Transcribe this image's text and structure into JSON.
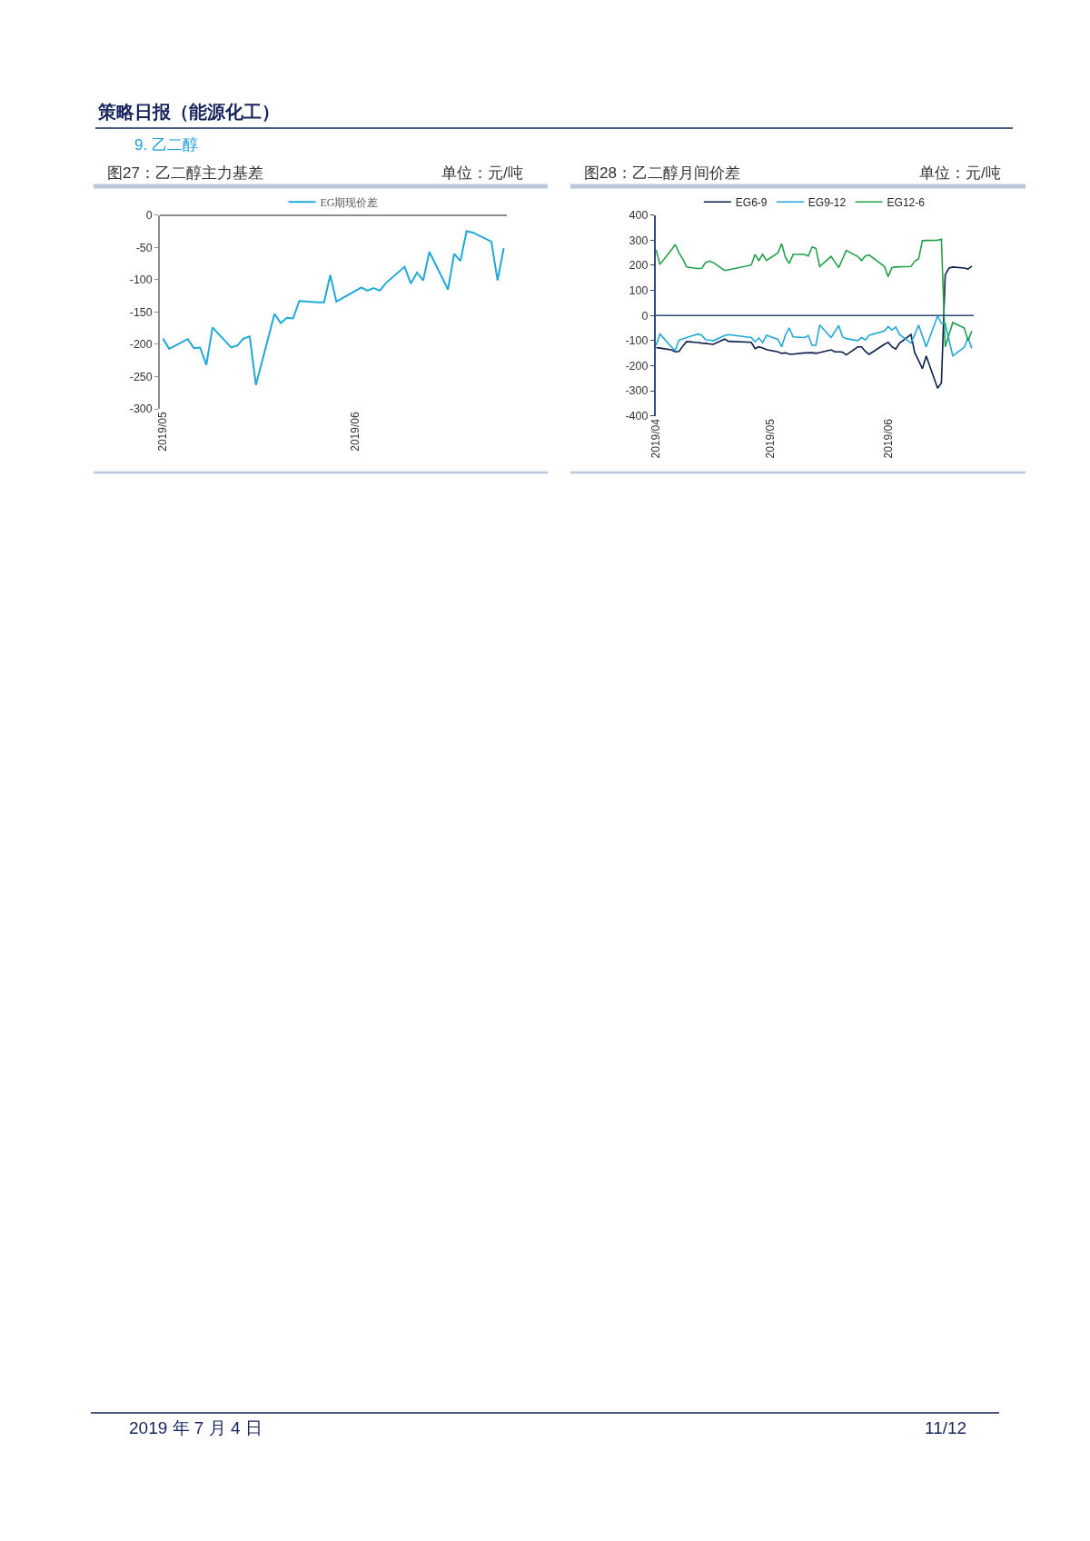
{
  "chart_data": [
    {
      "type": "line",
      "title": "图27：乙二醇主力基差",
      "annotations": [
        "单位：元/吨",
        "策略日报（能源化工）",
        "9. 乙二醇",
        "2019 年 7 月 4 日",
        "11/12"
      ],
      "x": [
        "2019-05-09",
        "2019-05-10",
        "2019-05-13",
        "2019-05-14",
        "2019-05-15",
        "2019-05-16",
        "2019-05-17",
        "2019-05-20",
        "2019-05-21",
        "2019-05-22",
        "2019-05-23",
        "2019-05-24",
        "2019-05-27",
        "2019-05-28",
        "2019-05-29",
        "2019-05-30",
        "2019-05-31",
        "2019-06-03",
        "2019-06-04",
        "2019-06-05",
        "2019-06-06",
        "2019-06-10",
        "2019-06-11",
        "2019-06-12",
        "2019-06-13",
        "2019-06-14",
        "2019-06-17",
        "2019-06-18",
        "2019-06-19",
        "2019-06-20",
        "2019-06-21",
        "2019-06-24",
        "2019-06-25",
        "2019-06-26",
        "2019-06-27",
        "2019-06-28",
        "2019-07-01",
        "2019-07-02",
        "2019-07-03"
      ],
      "series": [
        {
          "name": "EG期现价差",
          "color": "#1fa8d8",
          "values": [
            -191,
            -207,
            -192,
            -206,
            -205,
            -232,
            -174,
            -205,
            -202,
            -191,
            -188,
            -263,
            -153,
            -167,
            -159,
            -160,
            -133,
            -135,
            -135,
            -93,
            -134,
            -112,
            -117,
            -113,
            -117,
            -105,
            -80,
            -106,
            -89,
            -101,
            -57,
            -115,
            -60,
            -71,
            -25,
            -27,
            -41,
            -101,
            -51
          ]
        }
      ],
      "xlim": [
        "2019-05-08T12:00",
        "2019-07-03T12:00"
      ],
      "xticks": [
        {
          "value": "2019-05-09",
          "label": "2019/05"
        },
        {
          "value": "2019-06-09",
          "label": "2019/06"
        }
      ],
      "ylim": [
        -300,
        0
      ],
      "yticks": [
        -300,
        -250,
        -200,
        -150,
        -100,
        -50,
        0
      ],
      "legend": "top"
    },
    {
      "type": "line",
      "title": "图28：乙二醇月间价差",
      "annotations": [
        "单位：元/吨"
      ],
      "x": [
        "2019-04-11",
        "2019-04-12",
        "2019-04-15",
        "2019-04-16",
        "2019-04-17",
        "2019-04-18",
        "2019-04-19",
        "2019-04-22",
        "2019-04-23",
        "2019-04-24",
        "2019-04-25",
        "2019-04-26",
        "2019-04-29",
        "2019-04-30",
        "2019-05-06",
        "2019-05-07",
        "2019-05-08",
        "2019-05-09",
        "2019-05-10",
        "2019-05-13",
        "2019-05-14",
        "2019-05-15",
        "2019-05-16",
        "2019-05-17",
        "2019-05-20",
        "2019-05-21",
        "2019-05-22",
        "2019-05-23",
        "2019-05-24",
        "2019-05-27",
        "2019-05-28",
        "2019-05-29",
        "2019-05-30",
        "2019-05-31",
        "2019-06-03",
        "2019-06-04",
        "2019-06-05",
        "2019-06-06",
        "2019-06-10",
        "2019-06-11",
        "2019-06-12",
        "2019-06-13",
        "2019-06-14",
        "2019-06-17",
        "2019-06-18",
        "2019-06-19",
        "2019-06-20",
        "2019-06-21",
        "2019-06-24",
        "2019-06-25",
        "2019-06-26",
        "2019-06-27",
        "2019-06-28",
        "2019-07-01",
        "2019-07-02",
        "2019-07-03"
      ],
      "series": [
        {
          "name": "EG6-9",
          "color": "#0b1f4b",
          "values": [
            -128,
            -130,
            -137,
            -145,
            -143,
            -122,
            -104,
            -108,
            -110,
            -111,
            -113,
            -115,
            -94,
            -103,
            -107,
            -132,
            -125,
            -130,
            -136,
            -145,
            -151,
            -149,
            -154,
            -154,
            -149,
            -149,
            -148,
            -151,
            -148,
            -137,
            -145,
            -145,
            -146,
            -157,
            -125,
            -125,
            -143,
            -155,
            -115,
            -107,
            -125,
            -134,
            -110,
            -76,
            -149,
            -179,
            -212,
            -161,
            -290,
            -269,
            162,
            189,
            193,
            189,
            185,
            197
          ]
        },
        {
          "name": "EG9-12",
          "color": "#1fa8d8",
          "values": [
            -119,
            -74,
            -125,
            -140,
            -98,
            -93,
            -88,
            -74,
            -79,
            -97,
            -98,
            -101,
            -80,
            -76,
            -88,
            -105,
            -90,
            -108,
            -79,
            -95,
            -125,
            -76,
            -50,
            -85,
            -88,
            -80,
            -119,
            -119,
            -38,
            -88,
            -64,
            -40,
            -85,
            -92,
            -100,
            -88,
            -98,
            -79,
            -62,
            -44,
            -58,
            -46,
            -76,
            -110,
            -76,
            -38,
            -82,
            -125,
            -2,
            -32,
            -32,
            -98,
            -161,
            -127,
            -88,
            -131
          ]
        },
        {
          "name": "EG12-6",
          "color": "#20a04b",
          "values": [
            261,
            203,
            261,
            283,
            249,
            225,
            193,
            187,
            188,
            211,
            217,
            211,
            179,
            182,
            201,
            243,
            219,
            243,
            219,
            249,
            286,
            231,
            207,
            243,
            243,
            237,
            273,
            267,
            195,
            235,
            213,
            191,
            225,
            259,
            235,
            219,
            237,
            241,
            195,
            155,
            191,
            193,
            194,
            195,
            217,
            225,
            298,
            299,
            300,
            304,
            -125,
            -76,
            -28,
            -50,
            -101,
            -62
          ]
        }
      ],
      "xlim": [
        "2019-04-10T20:00",
        "2019-07-03T12:00"
      ],
      "xticks": [
        {
          "value": "2019-04-11",
          "label": "2019/04"
        },
        {
          "value": "2019-05-11",
          "label": "2019/05"
        },
        {
          "value": "2019-06-11",
          "label": "2019/06"
        }
      ],
      "ylim": [
        -400,
        400
      ],
      "yticks": [
        -400,
        -300,
        -200,
        -100,
        0,
        100,
        200,
        300,
        400
      ],
      "ref_lines": [
        {
          "axis": "y",
          "value": 0,
          "color": "#2e4a7d"
        }
      ],
      "legend": "top"
    }
  ]
}
